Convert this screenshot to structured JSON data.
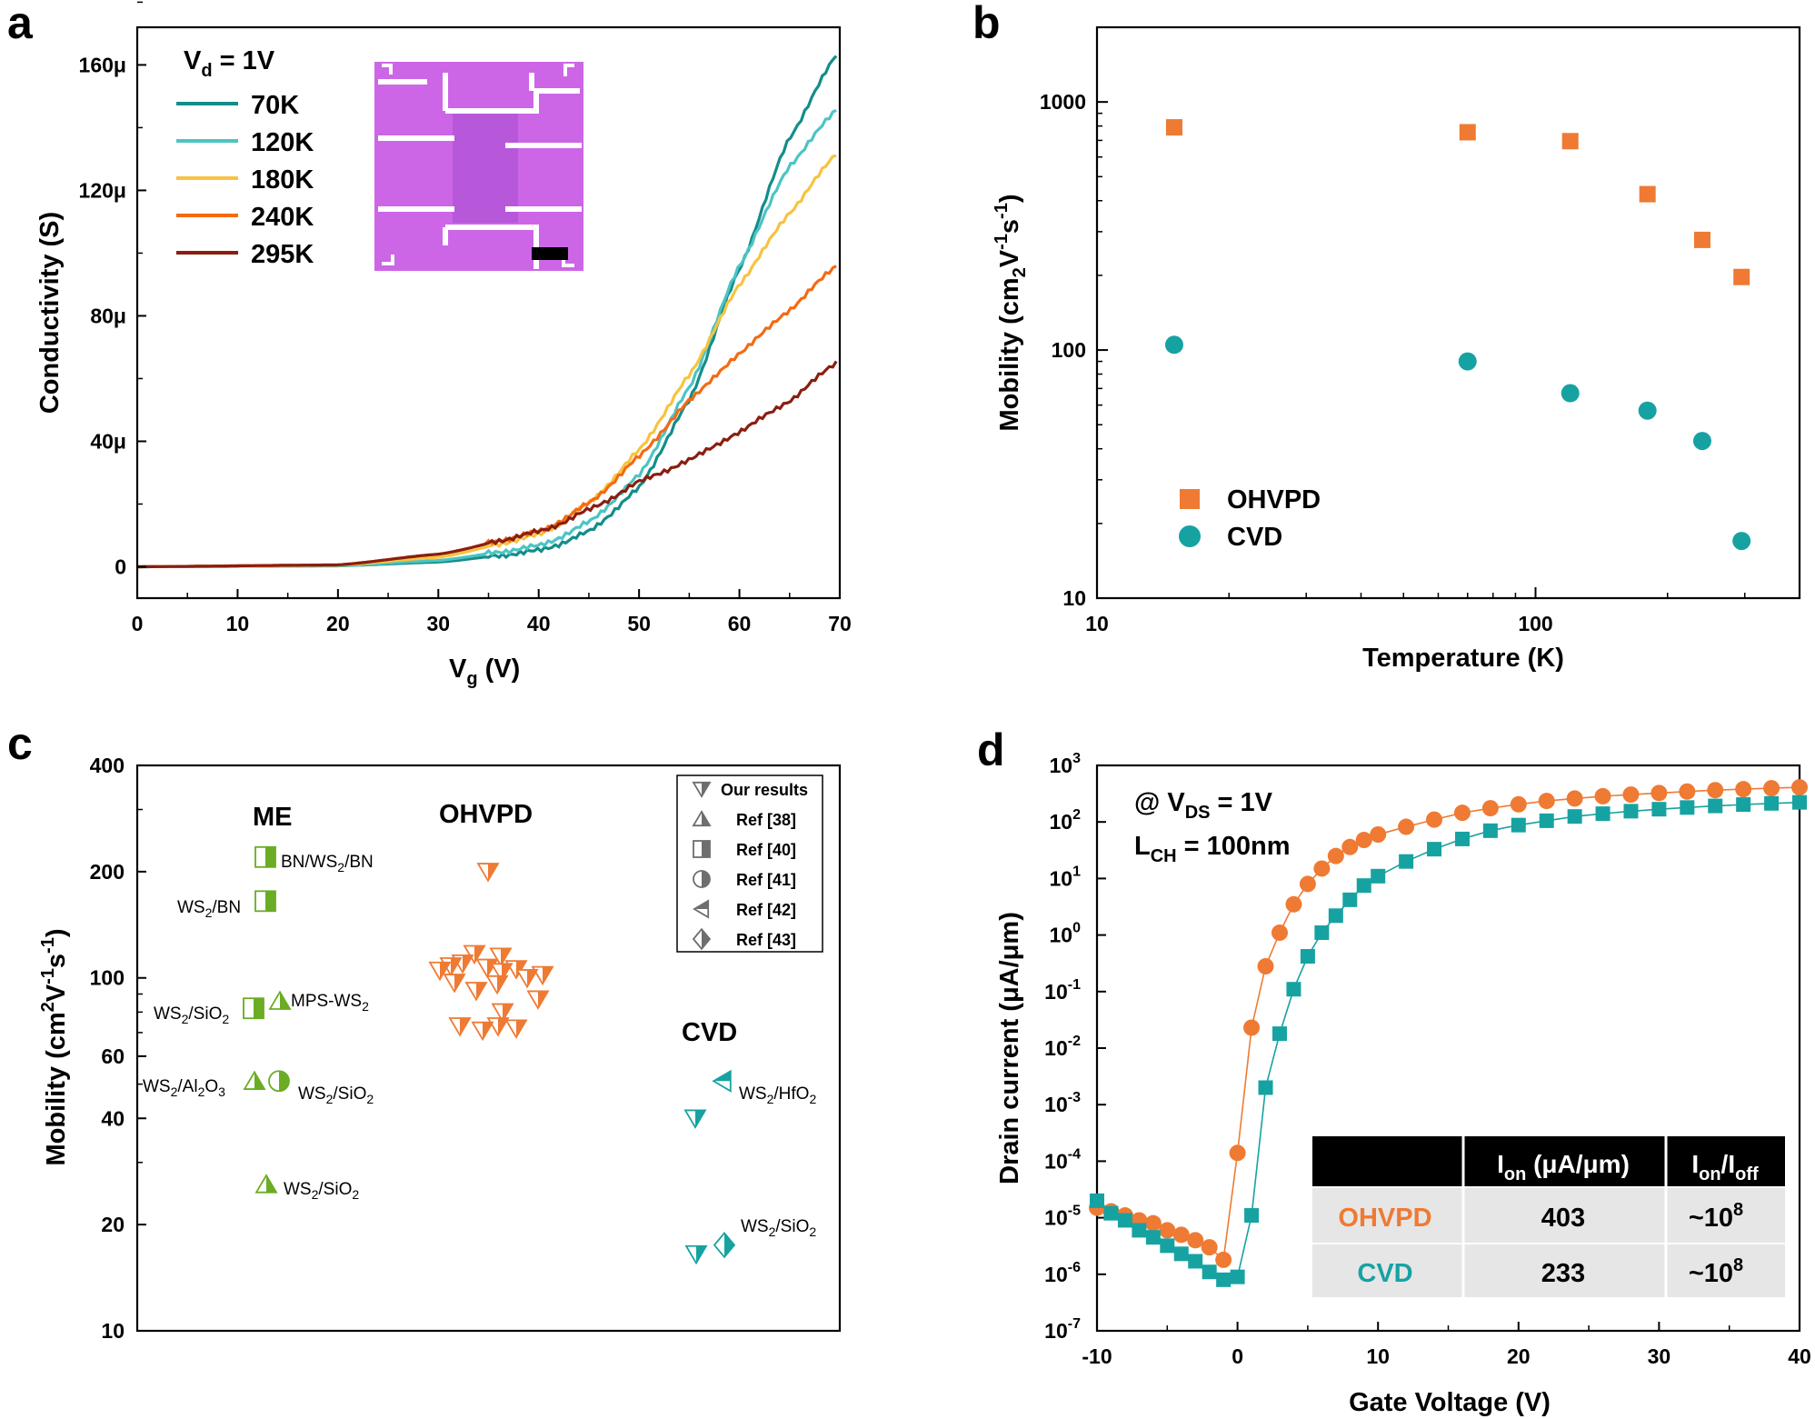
{
  "colors": {
    "orange": "#ef7a33",
    "teal": "#17a2a2",
    "green": "#6aac24",
    "k70": "#138d8a",
    "k120": "#4cc4c4",
    "k180": "#f7c340",
    "k240": "#f46a12",
    "k295": "#8a1e10",
    "inset": "#cc66e6",
    "table_header": "#000000",
    "table_row": "#e6e6e6"
  },
  "chart_data": [
    {
      "panel": "a",
      "type": "line",
      "xlabel_main": "V",
      "xlabel_sub": "g",
      "xlabel_unit": " (V)",
      "ylabel": "Conductivity (S)",
      "xlim": [
        0,
        70
      ],
      "ylim": [
        -10,
        172
      ],
      "xticks": [
        0,
        10,
        20,
        30,
        40,
        50,
        60,
        70
      ],
      "yticks": [
        0,
        40,
        80,
        120,
        160
      ],
      "ytick_labels": [
        "0",
        "40μ",
        "80μ",
        "120μ",
        "160μ"
      ],
      "legend_title_main": "V",
      "legend_title_sub": "d",
      "legend_title_rest": " = 1V",
      "legend_note": "inset: optical image of device",
      "series": [
        {
          "name": "70K",
          "color_key": "k70",
          "x": [
            0,
            20,
            30,
            40,
            45,
            50,
            55,
            60,
            65,
            70
          ],
          "y": [
            0,
            0.3,
            1.5,
            5,
            11,
            25,
            53,
            95,
            137,
            165
          ]
        },
        {
          "name": "120K",
          "color_key": "k120",
          "x": [
            0,
            20,
            30,
            40,
            45,
            50,
            55,
            60,
            65,
            70
          ],
          "y": [
            0,
            0.3,
            2,
            6.5,
            14,
            29,
            57,
            96,
            128,
            147
          ]
        },
        {
          "name": "180K",
          "color_key": "k180",
          "x": [
            0,
            20,
            30,
            40,
            45,
            50,
            55,
            60,
            65,
            70
          ],
          "y": [
            0,
            0.5,
            3,
            10,
            20,
            37,
            61,
            90,
            113,
            133
          ]
        },
        {
          "name": "240K",
          "color_key": "k240",
          "x": [
            0,
            20,
            30,
            40,
            45,
            50,
            55,
            60,
            65,
            70
          ],
          "y": [
            0,
            0.6,
            4,
            11,
            20,
            35,
            53,
            68,
            82,
            97
          ]
        },
        {
          "name": "295K",
          "color_key": "k295",
          "x": [
            0,
            20,
            30,
            40,
            45,
            50,
            55,
            60,
            65,
            70
          ],
          "y": [
            0,
            0.6,
            4,
            11,
            18,
            27,
            34,
            43,
            53,
            66
          ]
        }
      ]
    },
    {
      "panel": "b",
      "type": "scatter",
      "xscale": "log",
      "yscale": "log",
      "xlabel": "Temperature (K)",
      "ylabel_main": "Mobility (cm",
      "ylabel_sub": "2",
      "ylabel_mid": "V",
      "ylabel_sup1": "-1",
      "ylabel_mid2": "s",
      "ylabel_sup2": "-1",
      "ylabel_end": ")",
      "xlim": [
        10,
        400
      ],
      "ylim": [
        10,
        2000
      ],
      "xticks": [
        10,
        100
      ],
      "xtick_labels": [
        "10",
        "100"
      ],
      "yticks": [
        10,
        100,
        1000
      ],
      "ytick_labels": [
        "10",
        "100",
        "1000"
      ],
      "series": [
        {
          "name": "OHVPD",
          "marker": "square",
          "color_key": "orange",
          "x": [
            15,
            70,
            120,
            180,
            240,
            295
          ],
          "y": [
            790,
            755,
            695,
            425,
            278,
            197
          ]
        },
        {
          "name": "CVD",
          "marker": "circle",
          "color_key": "teal",
          "x": [
            15,
            70,
            120,
            180,
            240,
            295
          ],
          "y": [
            105,
            90,
            67,
            57,
            43,
            17
          ]
        }
      ]
    },
    {
      "panel": "c",
      "type": "scatter",
      "yscale": "log",
      "ylabel_main": "Mobility (cm",
      "ylabel_sup": "2",
      "ylabel_mid": "V",
      "ylabel_sup1": "-1",
      "ylabel_mid2": "s",
      "ylabel_sup2": "-1",
      "ylabel_end": ")",
      "ylim": [
        10,
        400
      ],
      "yticks": [
        10,
        20,
        40,
        60,
        100,
        200,
        400
      ],
      "ytick_labels": [
        "10",
        "20",
        "40",
        "60",
        "100",
        "200",
        "400"
      ],
      "groups": [
        {
          "name": "ME",
          "color_key": "green"
        },
        {
          "name": "OHVPD",
          "color_key": "orange"
        },
        {
          "name": "CVD",
          "color_key": "teal"
        }
      ],
      "legend": [
        {
          "marker": "tri-down",
          "label": "Our results"
        },
        {
          "marker": "tri-up",
          "label": "Ref [38]"
        },
        {
          "marker": "square-half",
          "label": "Ref [40]"
        },
        {
          "marker": "circle-half",
          "label": "Ref [41]"
        },
        {
          "marker": "tri-left",
          "label": "Ref [42]"
        },
        {
          "marker": "diamond-half",
          "label": "Ref [43]"
        }
      ],
      "points": [
        {
          "group": "ME",
          "marker": "square-half",
          "y": 220,
          "label_main": "BN/WS",
          "label_sub": "2",
          "label_end": "/BN"
        },
        {
          "group": "ME",
          "marker": "square-half",
          "y": 165,
          "label_main": "WS",
          "label_sub": "2",
          "label_end": "/BN"
        },
        {
          "group": "ME",
          "marker": "square-half",
          "y": 82,
          "label_main": "WS",
          "label_sub": "2",
          "label_end": "/SiO",
          "label_sub2": "2"
        },
        {
          "group": "ME",
          "marker": "tri-up",
          "y": 86,
          "label_main": "MPS-WS",
          "label_sub": "2",
          "label_end": ""
        },
        {
          "group": "ME",
          "marker": "tri-up",
          "y": 51,
          "label_main": "WS",
          "label_sub": "2",
          "label_end": "/Al",
          "label_sub2": "2",
          "label_end2": "O",
          "label_sub3": "3"
        },
        {
          "group": "ME",
          "marker": "circle-half",
          "y": 51,
          "label_main": "WS",
          "label_sub": "2",
          "label_end": "/SiO",
          "label_sub2": "2"
        },
        {
          "group": "ME",
          "marker": "tri-up",
          "y": 26,
          "label_main": "WS",
          "label_sub": "2",
          "label_end": "/SiO",
          "label_sub2": "2"
        },
        {
          "group": "OHVPD",
          "marker": "tri-down",
          "y": [
            200,
            117,
            115,
            110,
            108,
            107,
            106,
            105,
            104,
            102,
            100,
            97,
            96,
            92,
            87,
            80,
            73,
            73,
            72,
            71
          ]
        },
        {
          "group": "CVD",
          "marker": "tri-left",
          "y": 51,
          "label_main": "WS",
          "label_sub": "2",
          "label_end": "/HfO",
          "label_sub2": "2"
        },
        {
          "group": "CVD",
          "marker": "tri-down",
          "y": 40
        },
        {
          "group": "CVD",
          "marker": "diamond-half",
          "y": 17.5,
          "label_main": "WS",
          "label_sub": "2",
          "label_end": "/SiO",
          "label_sub2": "2"
        },
        {
          "group": "CVD",
          "marker": "tri-down",
          "y": 16.5
        }
      ]
    },
    {
      "panel": "d",
      "type": "scatter",
      "yscale": "log",
      "xlabel": "Gate Voltage (V)",
      "ylabel": "Drain current (μA/μm)",
      "xlim": [
        -10,
        40
      ],
      "ylim_exp": [
        -7,
        3
      ],
      "xticks": [
        -10,
        0,
        10,
        20,
        30,
        40
      ],
      "ytick_exponents": [
        -7,
        -6,
        -5,
        -4,
        -3,
        -2,
        -1,
        0,
        1,
        2,
        3
      ],
      "annotation_1_main": "@ V",
      "annotation_1_sub": "DS",
      "annotation_1_end": " = 1V",
      "annotation_2_main": "L",
      "annotation_2_sub": "CH",
      "annotation_2_end": " = 100nm",
      "series": [
        {
          "name": "OHVPD",
          "marker": "circle",
          "color_key": "orange",
          "x": [
            -10,
            -9,
            -8,
            -7,
            -6,
            -5,
            -4,
            -3,
            -2,
            -1,
            0,
            1,
            2,
            3,
            4,
            5,
            6,
            7,
            8,
            9,
            10,
            12,
            14,
            16,
            18,
            20,
            22,
            24,
            26,
            28,
            30,
            32,
            34,
            36,
            38,
            40
          ],
          "y": [
            1.5e-05,
            1.3e-05,
            1.1e-05,
            9e-06,
            8e-06,
            6e-06,
            5e-06,
            4e-06,
            3e-06,
            1.8e-06,
            0.00014,
            0.023,
            0.28,
            1.1,
            3.5,
            8,
            15,
            25,
            36,
            48,
            60,
            82,
            110,
            145,
            175,
            205,
            235,
            260,
            285,
            305,
            325,
            345,
            365,
            380,
            395,
            410
          ]
        },
        {
          "name": "CVD",
          "marker": "square",
          "color_key": "teal",
          "x": [
            -10,
            -9,
            -8,
            -7,
            -6,
            -5,
            -4,
            -3,
            -2,
            -1,
            0,
            1,
            2,
            3,
            4,
            5,
            6,
            7,
            8,
            9,
            10,
            12,
            14,
            16,
            18,
            20,
            22,
            24,
            26,
            28,
            30,
            32,
            34,
            36,
            38,
            40
          ],
          "y": [
            2e-05,
            1.2e-05,
            9e-06,
            6e-06,
            4.5e-06,
            3.2e-06,
            2.3e-06,
            1.7e-06,
            1.1e-06,
            8e-07,
            9e-07,
            1.1e-05,
            0.002,
            0.018,
            0.11,
            0.42,
            1.1,
            2.2,
            4.2,
            7.5,
            11,
            20,
            33,
            50,
            70,
            88,
            105,
            125,
            140,
            155,
            168,
            180,
            192,
            203,
            213,
            222
          ]
        }
      ],
      "table": {
        "header": [
          "",
          "I_on (μA/μm)",
          "I_on/I_off"
        ],
        "h1_main": "I",
        "h1_sub": "on",
        "h1_end": " (μA/μm)",
        "h2_main": "I",
        "h2_sub": "on",
        "h2_mid": "/I",
        "h2_sub2": "off",
        "rows": [
          {
            "name": "OHVPD",
            "color_key": "orange",
            "ion": "403",
            "ratio_main": "~10",
            "ratio_sup": "8"
          },
          {
            "name": "CVD",
            "color_key": "teal",
            "ion": "233",
            "ratio_main": "~10",
            "ratio_sup": "8"
          }
        ]
      }
    }
  ],
  "panel_labels": [
    "a",
    "b",
    "c",
    "d"
  ]
}
